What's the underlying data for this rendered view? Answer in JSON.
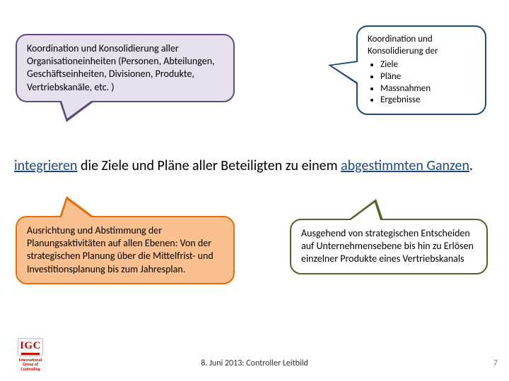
{
  "bubbles": {
    "top_left": {
      "text": "Koordination und Konsolidierung aller Organisationeinheiten (Personen, Abteilungen, Geschäftseinheiten, Divisionen, Produkte, Vertriebskanäle, etc. )",
      "bg_color": "#e6e0ec",
      "border_color": "#604a7b"
    },
    "top_right": {
      "lead": "Koordination und Konsolidierung der",
      "items": [
        "Ziele",
        "Pläne",
        "Massnahmen",
        "Ergebnisse"
      ],
      "bg_color": "#ffffff",
      "border_color": "#1f497d"
    },
    "bottom_left": {
      "text": "Ausrichtung und Abstimmung der Planungsaktivitäten auf allen Ebenen: Von der strategischen Planung über die Mittelfrist- und Investitionsplanung bis zum Jahresplan.",
      "bg_color": "#fac090",
      "border_color": "#e46c0a"
    },
    "bottom_right": {
      "text": "Ausgehend von strategischen Entscheiden auf Unternehmens­ebene bis hin zu Erlösen einzelner Produkte eines Vertriebskanals",
      "bg_color": "#ffffff",
      "border_color": "#4f6228"
    }
  },
  "sentence": {
    "kw1": "integrieren",
    "mid": " die Ziele und Pläne aller Beteiligten zu einem ",
    "kw2": "abgestimmten Ganzen",
    "tail": "."
  },
  "footer": {
    "date_line": "8. Juni 2013: Controller Leitbild",
    "page": "7"
  },
  "logo": {
    "abbr": "IGC",
    "line1": "International",
    "line2": "Group of",
    "line3": "Controlling"
  },
  "colors": {
    "keyword": "#1f497d",
    "logo_red": "#c00000"
  }
}
